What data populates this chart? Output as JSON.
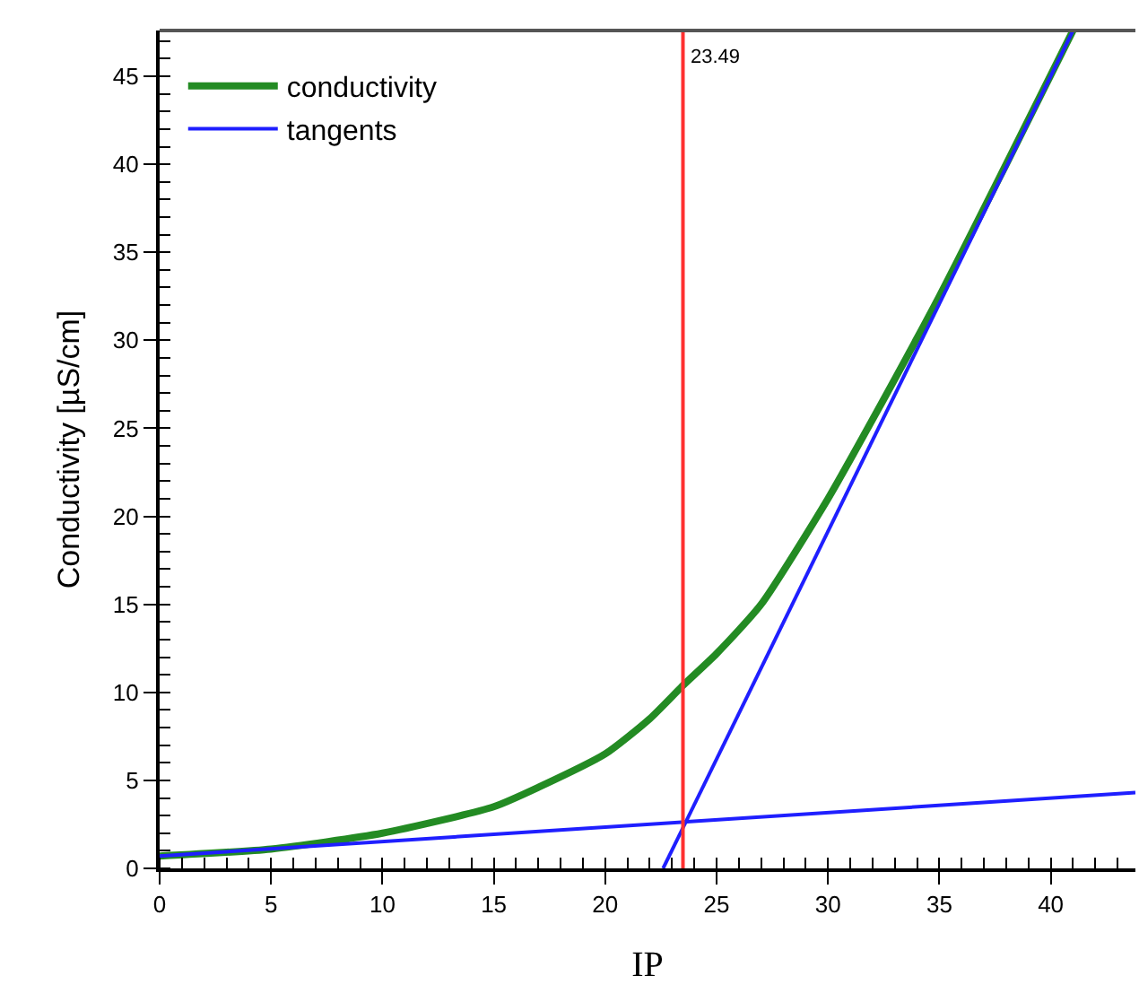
{
  "chart_data": {
    "type": "line",
    "xlabel": "IP",
    "ylabel": "Conductivity [µS/cm]",
    "xlim": [
      0,
      43.8
    ],
    "ylim": [
      0,
      47.6
    ],
    "xticks": [
      0,
      5,
      10,
      15,
      20,
      25,
      30,
      35,
      40
    ],
    "yticks": [
      0,
      5,
      10,
      15,
      20,
      25,
      30,
      35,
      40,
      45
    ],
    "legend": "top left",
    "grid": false,
    "marker": "none",
    "line_style": "solid",
    "series": [
      {
        "name": "conductivity",
        "color": "#238b23",
        "x": [
          0,
          5,
          10,
          15,
          17,
          20,
          22,
          23.5,
          25,
          27,
          30,
          32,
          35,
          38,
          41
        ],
        "values": [
          0.7,
          1.1,
          2.0,
          3.5,
          4.6,
          6.5,
          8.5,
          10.4,
          12.2,
          15,
          21,
          25.5,
          32.5,
          40,
          47.6
        ]
      },
      {
        "name": "tangents",
        "color": "#1f1fff",
        "x": [
          0,
          43.8
        ],
        "values": [
          0.7,
          4.3
        ]
      },
      {
        "color": "#1f1fff",
        "x": [
          22.6,
          41
        ],
        "values": [
          0,
          47.6
        ]
      }
    ],
    "ref_lines": [
      {
        "axis": "x",
        "value": 23.49,
        "label": "23.49",
        "color": "#ff3030"
      }
    ]
  }
}
